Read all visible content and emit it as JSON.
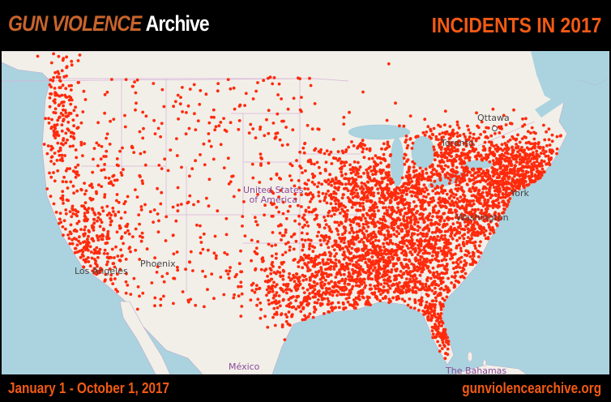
{
  "header": {
    "logo_part1": "GUN VIOLENCE",
    "logo_part2": "Archive",
    "title": "INCIDENTS IN 2017"
  },
  "map": {
    "labels": {
      "ottawa": "Ottawa",
      "toronto": "Toronto",
      "usa_line1": "United States",
      "usa_line2": "of America",
      "new_york": "York",
      "washington": "Washington",
      "los_angeles": "Los Angeles",
      "phoenix": "Phoenix",
      "mexico": "México",
      "bahamas": "The Bahamas"
    },
    "colors": {
      "water": "#aad3df",
      "land": "#f2efe9",
      "incident": "#ff2a0c",
      "border": "#c9a0c9"
    },
    "marker_icon": "incident-dot"
  },
  "footer": {
    "date_range": "January 1 - October 1, 2017",
    "website": "gunviolencearchive.org"
  }
}
